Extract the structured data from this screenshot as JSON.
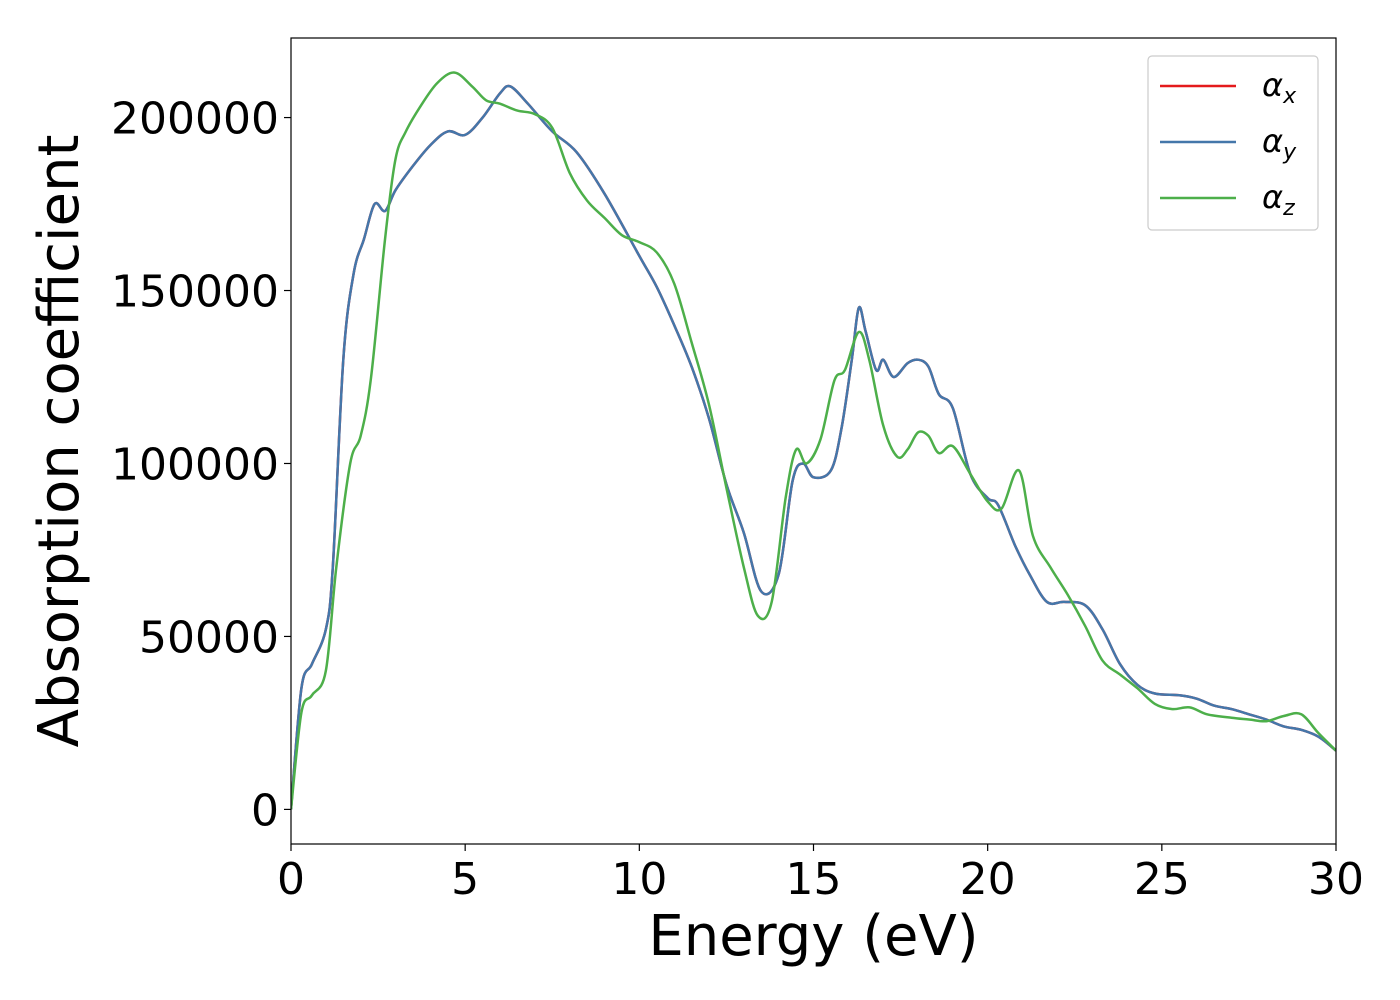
{
  "chart_data": {
    "type": "line",
    "xlabel": "Energy (eV)",
    "ylabel": "Absorption coefficient",
    "xlim": [
      0,
      30
    ],
    "ylim": [
      -10000,
      223000
    ],
    "xticks": [
      0,
      5,
      10,
      15,
      20,
      25,
      30
    ],
    "xtick_labels": [
      "0",
      "5",
      "10",
      "15",
      "20",
      "25",
      "30"
    ],
    "yticks": [
      0,
      50000,
      100000,
      150000,
      200000
    ],
    "ytick_labels": [
      "0",
      "50000",
      "100000",
      "150000",
      "200000"
    ],
    "grid": false,
    "legend_position": "top-right",
    "series": [
      {
        "name": "α",
        "subscript": "x",
        "color": "#e41a1c",
        "x": [
          0,
          0.3,
          0.6,
          1,
          1.2,
          1.5,
          1.8,
          2.1,
          2.4,
          2.7,
          3,
          3.5,
          4,
          4.5,
          5,
          5.5,
          6,
          6.3,
          6.8,
          7.5,
          8.2,
          9,
          10,
          10.5,
          11,
          11.5,
          12,
          12.5,
          13,
          13.5,
          14,
          14.4,
          14.7,
          15,
          15.5,
          15.8,
          16.1,
          16.3,
          16.5,
          16.8,
          17,
          17.3,
          17.7,
          18,
          18.3,
          18.6,
          19,
          19.5,
          20,
          20.3,
          20.8,
          21.2,
          21.7,
          22.2,
          22.8,
          23.3,
          23.8,
          24.3,
          24.8,
          25.5,
          26,
          26.5,
          27,
          27.5,
          28,
          28.5,
          29,
          29.5,
          30
        ],
        "y": [
          0,
          35000,
          42000,
          52000,
          70000,
          130000,
          155000,
          165000,
          175000,
          173000,
          179000,
          186000,
          192000,
          196000,
          195000,
          200000,
          207000,
          209000,
          204000,
          196000,
          190000,
          178000,
          160000,
          151000,
          140000,
          128000,
          113000,
          94000,
          80000,
          63000,
          68000,
          95000,
          100000,
          96000,
          98000,
          110000,
          130000,
          145000,
          138000,
          127000,
          130000,
          125000,
          129000,
          130000,
          128000,
          120000,
          116000,
          97000,
          90000,
          88000,
          76000,
          68000,
          60000,
          60000,
          59000,
          52000,
          42000,
          36000,
          33500,
          33000,
          32000,
          30000,
          29000,
          27500,
          26000,
          24000,
          23000,
          21000,
          17000
        ]
      },
      {
        "name": "α",
        "subscript": "y",
        "color": "#4477aa",
        "x": [
          0,
          0.3,
          0.6,
          1,
          1.2,
          1.5,
          1.8,
          2.1,
          2.4,
          2.7,
          3,
          3.5,
          4,
          4.5,
          5,
          5.5,
          6,
          6.3,
          6.8,
          7.5,
          8.2,
          9,
          10,
          10.5,
          11,
          11.5,
          12,
          12.5,
          13,
          13.5,
          14,
          14.4,
          14.7,
          15,
          15.5,
          15.8,
          16.1,
          16.3,
          16.5,
          16.8,
          17,
          17.3,
          17.7,
          18,
          18.3,
          18.6,
          19,
          19.5,
          20,
          20.3,
          20.8,
          21.2,
          21.7,
          22.2,
          22.8,
          23.3,
          23.8,
          24.3,
          24.8,
          25.5,
          26,
          26.5,
          27,
          27.5,
          28,
          28.5,
          29,
          29.5,
          30
        ],
        "y": [
          0,
          35000,
          42000,
          52000,
          70000,
          130000,
          155000,
          165000,
          175000,
          173000,
          179000,
          186000,
          192000,
          196000,
          195000,
          200000,
          207000,
          209000,
          204000,
          196000,
          190000,
          178000,
          160000,
          151000,
          140000,
          128000,
          113000,
          94000,
          80000,
          63000,
          68000,
          95000,
          100000,
          96000,
          98000,
          110000,
          130000,
          145000,
          138000,
          127000,
          130000,
          125000,
          129000,
          130000,
          128000,
          120000,
          116000,
          97000,
          90000,
          88000,
          76000,
          68000,
          60000,
          60000,
          59000,
          52000,
          42000,
          36000,
          33500,
          33000,
          32000,
          30000,
          29000,
          27500,
          26000,
          24000,
          23000,
          21000,
          17000
        ]
      },
      {
        "name": "α",
        "subscript": "z",
        "color": "#4daf4a",
        "x": [
          0,
          0.3,
          0.6,
          1,
          1.3,
          1.7,
          2,
          2.3,
          2.7,
          3,
          3.3,
          3.7,
          4.2,
          4.7,
          5.2,
          5.6,
          6,
          6.5,
          7,
          7.5,
          8,
          8.5,
          9,
          9.5,
          10,
          10.5,
          11,
          11.5,
          12,
          12.5,
          13,
          13.4,
          13.8,
          14.2,
          14.5,
          14.8,
          15.2,
          15.6,
          15.9,
          16.3,
          16.6,
          17,
          17.4,
          17.7,
          18,
          18.3,
          18.6,
          19,
          19.5,
          20,
          20.4,
          20.9,
          21.3,
          21.8,
          22.3,
          22.8,
          23.3,
          23.8,
          24.3,
          24.8,
          25.3,
          25.8,
          26.3,
          27,
          27.5,
          28,
          28.5,
          29,
          29.5,
          30
        ],
        "y": [
          0,
          28000,
          33000,
          40000,
          70000,
          100000,
          108000,
          125000,
          165000,
          188000,
          196000,
          203000,
          210000,
          213000,
          209000,
          205000,
          204000,
          202000,
          201000,
          197000,
          184000,
          176000,
          171000,
          166000,
          164000,
          161000,
          152000,
          135000,
          117000,
          93000,
          70000,
          56000,
          60000,
          90000,
          104000,
          100000,
          107000,
          124000,
          127000,
          138000,
          130000,
          111000,
          102000,
          104000,
          109000,
          108000,
          103000,
          105000,
          97000,
          89000,
          87000,
          98000,
          79000,
          70000,
          62000,
          53000,
          43000,
          39000,
          35000,
          30500,
          29000,
          29500,
          27500,
          26500,
          26000,
          25500,
          27000,
          27500,
          22000,
          17000
        ]
      }
    ]
  }
}
